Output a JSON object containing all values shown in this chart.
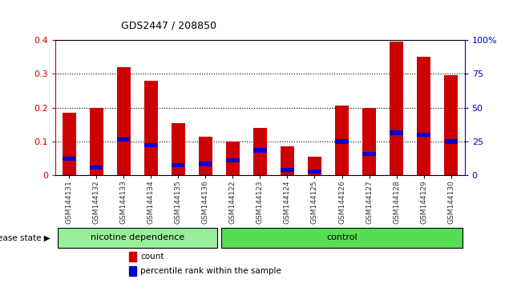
{
  "title": "GDS2447 / 208850",
  "samples": [
    "GSM144131",
    "GSM144132",
    "GSM144133",
    "GSM144134",
    "GSM144135",
    "GSM144136",
    "GSM144122",
    "GSM144123",
    "GSM144124",
    "GSM144125",
    "GSM144126",
    "GSM144127",
    "GSM144128",
    "GSM144129",
    "GSM144130"
  ],
  "count_values": [
    0.185,
    0.2,
    0.32,
    0.28,
    0.155,
    0.115,
    0.1,
    0.14,
    0.085,
    0.055,
    0.205,
    0.2,
    0.395,
    0.35,
    0.295
  ],
  "percentile_values": [
    12.5,
    6.0,
    26.5,
    22.5,
    7.5,
    8.5,
    11.0,
    18.5,
    4.0,
    3.0,
    25.0,
    16.0,
    31.5,
    30.0,
    25.0
  ],
  "bar_color": "#cc0000",
  "percentile_color": "#0000cc",
  "ylim_left": [
    0,
    0.4
  ],
  "ylim_right": [
    0,
    100
  ],
  "yticks_left": [
    0,
    0.1,
    0.2,
    0.3,
    0.4
  ],
  "yticks_right": [
    0,
    25,
    50,
    75,
    100
  ],
  "ytick_labels_left": [
    "0",
    "0.1",
    "0.2",
    "0.3",
    "0.4"
  ],
  "ytick_labels_right": [
    "0",
    "25",
    "50",
    "75",
    "100%"
  ],
  "groups": [
    {
      "label": "nicotine dependence",
      "start": 0,
      "end": 6,
      "color": "#99ee99"
    },
    {
      "label": "control",
      "start": 6,
      "end": 15,
      "color": "#55dd55"
    }
  ],
  "group_label_prefix": "disease state",
  "legend_items": [
    {
      "label": "count",
      "color": "#cc0000"
    },
    {
      "label": "percentile rank within the sample",
      "color": "#0000cc"
    }
  ],
  "bar_width": 0.5,
  "background_color": "#ffffff",
  "tick_label_color_left": "#cc0000",
  "tick_label_color_right": "#0000cc",
  "nicotine_count": 6,
  "total_count": 15
}
